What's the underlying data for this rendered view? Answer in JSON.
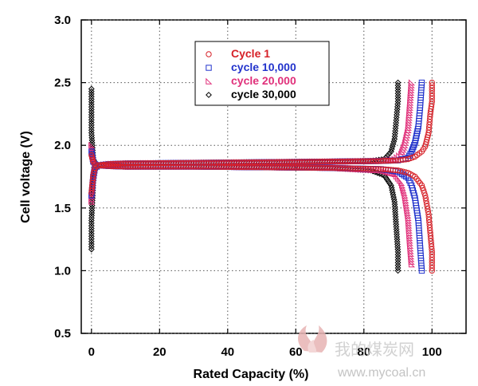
{
  "chart_data": {
    "type": "scatter",
    "title": "",
    "xlabel": "Rated Capacity (%)",
    "ylabel": "Cell voltage (V)",
    "xlim": [
      -3,
      110
    ],
    "ylim": [
      0.5,
      3.0
    ],
    "x_ticks": [
      0,
      20,
      40,
      60,
      80,
      100
    ],
    "y_ticks": [
      0.5,
      1.0,
      1.5,
      2.0,
      2.5,
      3.0
    ],
    "x_tick_labels": [
      "0",
      "20",
      "40",
      "60",
      "80",
      "100"
    ],
    "y_tick_labels": [
      "0.5",
      "1.0",
      "1.5",
      "2.0",
      "2.5",
      "3.0"
    ],
    "grid": "dashed",
    "legend_position": "top-center",
    "series": [
      {
        "name": "Cycle 1",
        "marker": "circle",
        "color": "#d62027",
        "charge": [
          [
            0,
            1.62
          ],
          [
            0.5,
            1.76
          ],
          [
            1,
            1.82
          ],
          [
            2,
            1.84
          ],
          [
            5,
            1.85
          ],
          [
            10,
            1.855
          ],
          [
            30,
            1.86
          ],
          [
            50,
            1.865
          ],
          [
            70,
            1.87
          ],
          [
            85,
            1.875
          ],
          [
            90,
            1.88
          ],
          [
            93,
            1.89
          ],
          [
            95,
            1.91
          ],
          [
            97,
            1.95
          ],
          [
            98,
            1.99
          ],
          [
            99,
            2.1
          ],
          [
            99.5,
            2.25
          ],
          [
            100,
            2.35
          ],
          [
            100,
            2.5
          ]
        ],
        "discharge": [
          [
            0,
            1.92
          ],
          [
            0.5,
            1.87
          ],
          [
            1,
            1.85
          ],
          [
            2,
            1.84
          ],
          [
            5,
            1.835
          ],
          [
            10,
            1.83
          ],
          [
            30,
            1.83
          ],
          [
            50,
            1.825
          ],
          [
            70,
            1.82
          ],
          [
            85,
            1.81
          ],
          [
            90,
            1.8
          ],
          [
            93,
            1.78
          ],
          [
            95,
            1.75
          ],
          [
            97,
            1.68
          ],
          [
            98,
            1.6
          ],
          [
            99,
            1.45
          ],
          [
            99.5,
            1.3
          ],
          [
            100,
            1.15
          ],
          [
            100,
            1.0
          ]
        ]
      },
      {
        "name": "cycle 10,000",
        "marker": "square",
        "color": "#2233cc",
        "charge": [
          [
            0,
            1.6
          ],
          [
            0.5,
            1.75
          ],
          [
            1,
            1.82
          ],
          [
            2,
            1.84
          ],
          [
            5,
            1.85
          ],
          [
            10,
            1.855
          ],
          [
            30,
            1.86
          ],
          [
            50,
            1.865
          ],
          [
            70,
            1.87
          ],
          [
            85,
            1.875
          ],
          [
            90,
            1.88
          ],
          [
            93,
            1.9
          ],
          [
            94,
            1.95
          ],
          [
            95,
            2.02
          ],
          [
            96,
            2.15
          ],
          [
            96.5,
            2.3
          ],
          [
            97,
            2.5
          ]
        ],
        "discharge": [
          [
            0,
            1.95
          ],
          [
            0.5,
            1.87
          ],
          [
            1,
            1.85
          ],
          [
            2,
            1.84
          ],
          [
            5,
            1.835
          ],
          [
            10,
            1.83
          ],
          [
            30,
            1.83
          ],
          [
            50,
            1.825
          ],
          [
            70,
            1.82
          ],
          [
            85,
            1.81
          ],
          [
            90,
            1.79
          ],
          [
            93,
            1.74
          ],
          [
            94,
            1.68
          ],
          [
            95,
            1.58
          ],
          [
            96,
            1.4
          ],
          [
            96.5,
            1.2
          ],
          [
            97,
            1.0
          ]
        ]
      },
      {
        "name": "cycle 20,000",
        "marker": "triangle",
        "color": "#e0307a",
        "charge": [
          [
            0,
            1.55
          ],
          [
            0.5,
            1.74
          ],
          [
            1,
            1.82
          ],
          [
            2,
            1.84
          ],
          [
            5,
            1.85
          ],
          [
            10,
            1.855
          ],
          [
            30,
            1.86
          ],
          [
            50,
            1.865
          ],
          [
            70,
            1.87
          ],
          [
            85,
            1.875
          ],
          [
            89,
            1.89
          ],
          [
            91,
            1.93
          ],
          [
            92,
            2.0
          ],
          [
            93,
            2.12
          ],
          [
            93.5,
            2.3
          ],
          [
            94,
            2.5
          ]
        ],
        "discharge": [
          [
            0,
            2.0
          ],
          [
            0.5,
            1.88
          ],
          [
            1,
            1.85
          ],
          [
            2,
            1.84
          ],
          [
            5,
            1.835
          ],
          [
            10,
            1.83
          ],
          [
            30,
            1.83
          ],
          [
            50,
            1.825
          ],
          [
            70,
            1.82
          ],
          [
            85,
            1.8
          ],
          [
            89,
            1.77
          ],
          [
            91,
            1.7
          ],
          [
            92,
            1.6
          ],
          [
            93,
            1.42
          ],
          [
            93.5,
            1.22
          ],
          [
            94,
            1.05
          ]
        ]
      },
      {
        "name": "cycle 30,000",
        "marker": "diamond",
        "color": "#000000",
        "charge": [
          [
            0,
            1.17
          ],
          [
            0,
            1.4
          ],
          [
            0.5,
            1.7
          ],
          [
            1,
            1.8
          ],
          [
            2,
            1.84
          ],
          [
            5,
            1.85
          ],
          [
            10,
            1.855
          ],
          [
            30,
            1.86
          ],
          [
            50,
            1.865
          ],
          [
            70,
            1.87
          ],
          [
            82,
            1.875
          ],
          [
            86,
            1.89
          ],
          [
            88,
            1.95
          ],
          [
            89,
            2.05
          ],
          [
            89.5,
            2.2
          ],
          [
            90,
            2.35
          ],
          [
            90,
            2.5
          ]
        ],
        "discharge": [
          [
            0,
            2.45
          ],
          [
            0,
            2.1
          ],
          [
            0.5,
            1.9
          ],
          [
            1,
            1.86
          ],
          [
            2,
            1.84
          ],
          [
            5,
            1.835
          ],
          [
            10,
            1.83
          ],
          [
            30,
            1.83
          ],
          [
            50,
            1.825
          ],
          [
            70,
            1.82
          ],
          [
            82,
            1.8
          ],
          [
            86,
            1.76
          ],
          [
            88,
            1.68
          ],
          [
            89,
            1.55
          ],
          [
            89.5,
            1.35
          ],
          [
            90,
            1.15
          ],
          [
            90,
            1.0
          ]
        ]
      }
    ]
  },
  "watermark": {
    "cn": "我的煤炭网",
    "url": "www.mycoal.cn"
  }
}
